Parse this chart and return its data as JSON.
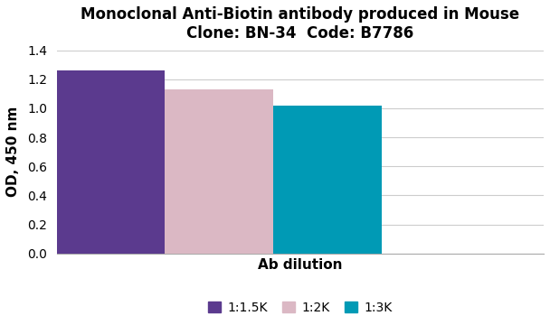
{
  "title_line1": "Monoclonal Anti-Biotin antibody produced in Mouse",
  "title_line2": "Clone: BN-34  Code: B7786",
  "categories": [
    "1:1.5K",
    "1:2K",
    "1:3K"
  ],
  "values": [
    1.26,
    1.13,
    1.02
  ],
  "bar_colors": [
    "#5b3a8e",
    "#dbb8c4",
    "#009ab5"
  ],
  "xlabel": "Ab dilution",
  "ylabel": "OD, 450 nm",
  "ylim": [
    0,
    1.4
  ],
  "yticks": [
    0,
    0.2,
    0.4,
    0.6,
    0.8,
    1.0,
    1.2,
    1.4
  ],
  "legend_labels": [
    "1:1.5K",
    "1:2K",
    "1:3K"
  ],
  "background_color": "#ffffff",
  "grid_color": "#cccccc",
  "title_fontsize": 12,
  "axis_label_fontsize": 11,
  "tick_fontsize": 10,
  "legend_fontsize": 10
}
